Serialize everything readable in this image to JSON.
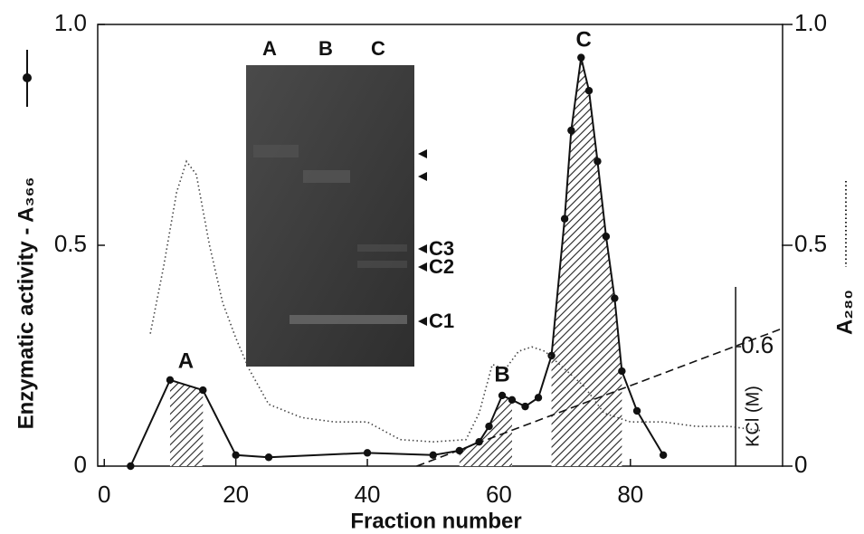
{
  "chart_data": {
    "type": "line",
    "xlabel": "Fraction number",
    "ylabel": "Enzymatic activity - A₃₆₆",
    "y2label": "A₂₈₀",
    "y3label": "KCl (M)",
    "xlim": [
      -1,
      103
    ],
    "ylim": [
      0,
      1
    ],
    "y2lim": [
      0,
      1
    ],
    "y3lim": [
      0,
      0.9
    ],
    "y3x": 96,
    "xticks": [
      0,
      20,
      40,
      60,
      80
    ],
    "yticks": [
      0,
      0.5,
      {
        "value": 1,
        "label": "1.0"
      }
    ],
    "y2ticks": [
      0,
      0.5,
      {
        "value": 1,
        "label": "1.0"
      }
    ],
    "y3ticks": [
      0.6
    ],
    "series": [
      {
        "color": "#111111",
        "style": "solid-dots",
        "axis": "y",
        "x": [
          4,
          10,
          15,
          20,
          25,
          40,
          50,
          54,
          57,
          58.5,
          60.5,
          62,
          64,
          66,
          68,
          70,
          71,
          72.5,
          73.7,
          75,
          76.3,
          77.6,
          78.7,
          81,
          85
        ],
        "values": [
          0,
          0.195,
          0.172,
          0.025,
          0.02,
          0.03,
          0.025,
          0.035,
          0.055,
          0.09,
          0.16,
          0.15,
          0.135,
          0.155,
          0.25,
          0.56,
          0.76,
          0.925,
          0.85,
          0.69,
          0.52,
          0.38,
          0.215,
          0.125,
          0.025
        ]
      },
      {
        "color": "#444444",
        "style": "dotted",
        "axis": "y2",
        "x": [
          7,
          9,
          11,
          12.5,
          14,
          16,
          18,
          20,
          22,
          25,
          30,
          35,
          40,
          45,
          50,
          55,
          57,
          59,
          61,
          63,
          65,
          67,
          70,
          73,
          76,
          80,
          85,
          90,
          95,
          100
        ],
        "values": [
          0.3,
          0.45,
          0.62,
          0.69,
          0.66,
          0.5,
          0.37,
          0.29,
          0.22,
          0.14,
          0.11,
          0.1,
          0.1,
          0.06,
          0.055,
          0.06,
          0.12,
          0.23,
          0.22,
          0.26,
          0.27,
          0.26,
          0.22,
          0.18,
          0.12,
          0.1,
          0.1,
          0.09,
          0.09,
          0.08
        ]
      },
      {
        "color": "#111111",
        "style": "dashed",
        "axis": "y3",
        "x": [
          47.5,
          103
        ],
        "values": [
          0,
          0.69
        ]
      }
    ],
    "shaded_ranges": [
      [
        10,
        15
      ],
      [
        54,
        62
      ],
      [
        68,
        78.7
      ]
    ],
    "annotations": [
      {
        "text": "A",
        "x": 12.4,
        "y": 0.235
      },
      {
        "text": "B",
        "x": 60.5,
        "y": 0.205
      },
      {
        "text": "C",
        "x": 72.9,
        "y": 0.963
      }
    ],
    "inset": {
      "lanes": [
        "A",
        "B",
        "C"
      ],
      "markers": [
        "C3",
        "C2",
        "C1"
      ]
    }
  }
}
